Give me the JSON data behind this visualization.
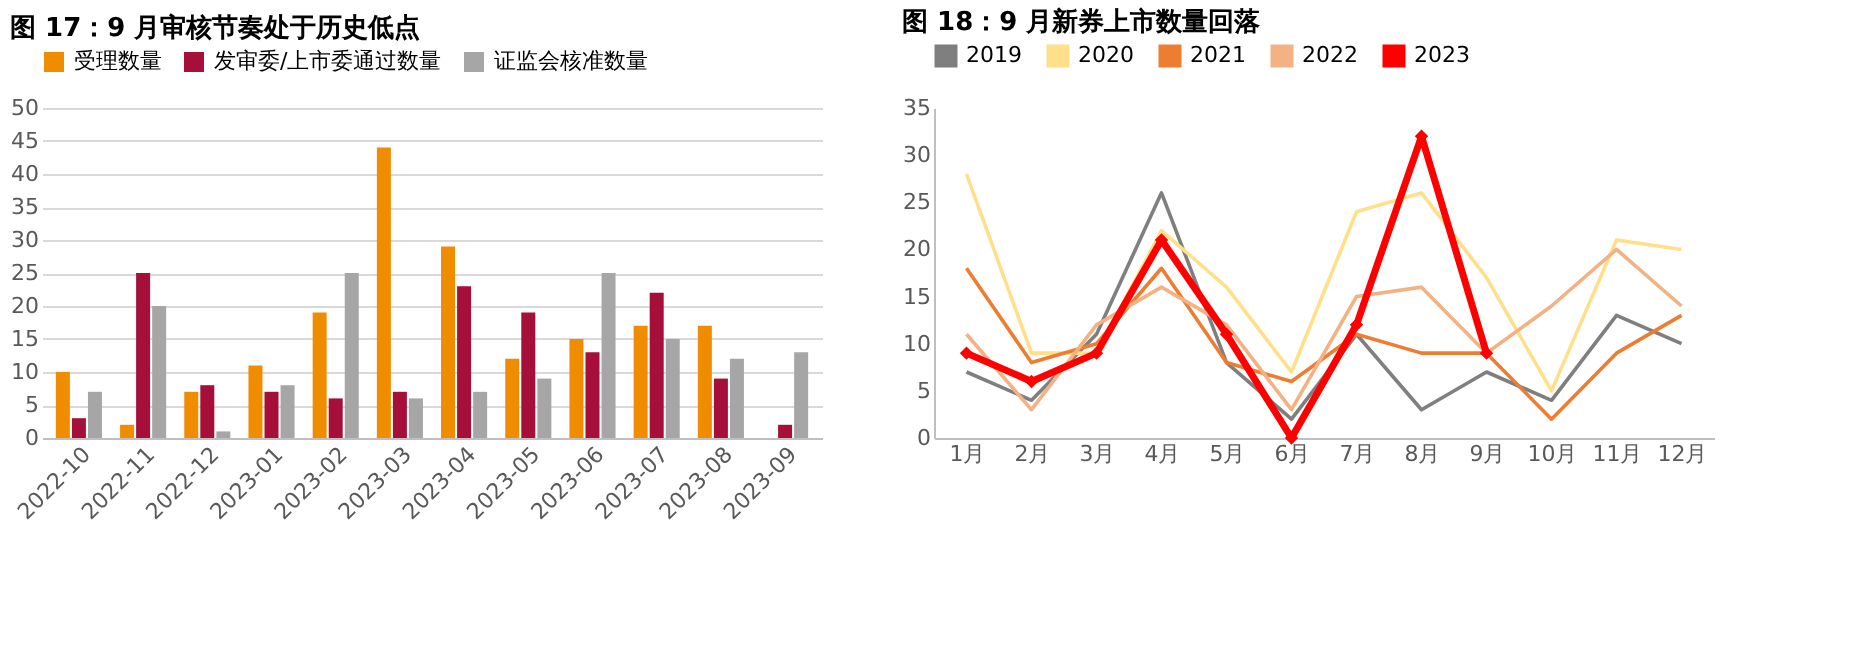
{
  "chart_data": [
    {
      "type": "bar",
      "title": "图 17：9 月审核节奏处于历史低点",
      "categories": [
        "2022-10",
        "2022-11",
        "2022-12",
        "2023-01",
        "2023-02",
        "2023-03",
        "2023-04",
        "2023-05",
        "2023-06",
        "2023-07",
        "2023-08",
        "2023-09"
      ],
      "series": [
        {
          "name": "受理数量",
          "color": "#f08c00",
          "values": [
            10,
            2,
            7,
            11,
            19,
            44,
            29,
            12,
            15,
            17,
            17,
            null
          ]
        },
        {
          "name": "发审委/上市委通过数量",
          "color": "#a50f3a",
          "values": [
            3,
            25,
            8,
            7,
            6,
            7,
            23,
            19,
            13,
            22,
            9,
            2
          ]
        },
        {
          "name": "证监会核准数量",
          "color": "#a6a6a6",
          "values": [
            7,
            20,
            1,
            8,
            25,
            6,
            7,
            9,
            25,
            15,
            12,
            13
          ]
        }
      ],
      "ylim": [
        0,
        50
      ],
      "yticks": [
        0,
        5,
        10,
        15,
        20,
        25,
        30,
        35,
        40,
        45,
        50
      ],
      "grid": "y",
      "legend": "top"
    },
    {
      "type": "line",
      "title": "图 18：9 月新券上市数量回落",
      "categories": [
        "1月",
        "2月",
        "3月",
        "4月",
        "5月",
        "6月",
        "7月",
        "8月",
        "9月",
        "10月",
        "11月",
        "12月"
      ],
      "series": [
        {
          "name": "2019",
          "color": "#7f7f7f",
          "values": [
            7,
            4,
            11,
            26,
            8,
            2,
            11,
            3,
            7,
            4,
            13,
            10
          ]
        },
        {
          "name": "2020",
          "color": "#ffe08a",
          "values": [
            28,
            9,
            9,
            22,
            16,
            7,
            24,
            26,
            17,
            5,
            21,
            20
          ]
        },
        {
          "name": "2021",
          "color": "#ed7d31",
          "values": [
            18,
            8,
            10,
            18,
            8,
            6,
            11,
            9,
            9,
            2,
            9,
            13
          ]
        },
        {
          "name": "2022",
          "color": "#f4b183",
          "values": [
            11,
            3,
            12,
            16,
            12,
            3,
            15,
            16,
            9,
            14,
            20,
            14
          ]
        },
        {
          "name": "2023",
          "color": "#ff0000",
          "values": [
            9,
            6,
            9,
            21,
            11,
            0,
            12,
            32,
            9,
            null,
            null,
            null
          ],
          "marker": "diamond"
        }
      ],
      "ylim": [
        0,
        35
      ],
      "yticks": [
        0,
        5,
        10,
        15,
        20,
        25,
        30,
        35
      ],
      "grid": false,
      "legend": "top",
      "line_style": "solid"
    }
  ]
}
